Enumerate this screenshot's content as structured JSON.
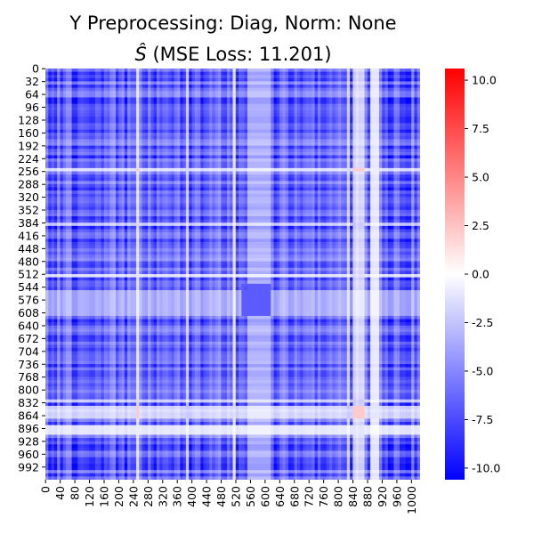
{
  "chart_data": {
    "type": "heatmap",
    "title_line1": "Y Preprocessing: Diag, Norm: None",
    "title_line2_prefix": "Ŝ",
    "title_line2_rest": " (MSE Loss: 11.201)",
    "matrix_size": 1024,
    "y_ticks": [
      "0",
      "32",
      "64",
      "96",
      "128",
      "160",
      "192",
      "224",
      "256",
      "288",
      "320",
      "352",
      "384",
      "416",
      "448",
      "480",
      "512",
      "544",
      "576",
      "608",
      "640",
      "672",
      "704",
      "736",
      "768",
      "800",
      "832",
      "864",
      "896",
      "928",
      "960",
      "992"
    ],
    "x_ticks": [
      "0",
      "40",
      "80",
      "120",
      "160",
      "200",
      "240",
      "280",
      "320",
      "360",
      "400",
      "440",
      "480",
      "520",
      "560",
      "600",
      "640",
      "680",
      "720",
      "760",
      "800",
      "840",
      "880",
      "920",
      "960",
      "1000"
    ],
    "colorbar": {
      "min": -10.6,
      "max": 10.6,
      "ticks": [
        "10.0",
        "7.5",
        "5.0",
        "2.5",
        "0.0",
        "-2.5",
        "-5.0",
        "-7.5",
        "-10.0"
      ],
      "tick_values": [
        10.0,
        7.5,
        5.0,
        2.5,
        0.0,
        -2.5,
        -5.0,
        -7.5,
        -10.0
      ],
      "colormap": "bwr",
      "low_color": "#0000ff",
      "mid_color": "#ffffff",
      "high_color": "#ff0000"
    }
  }
}
